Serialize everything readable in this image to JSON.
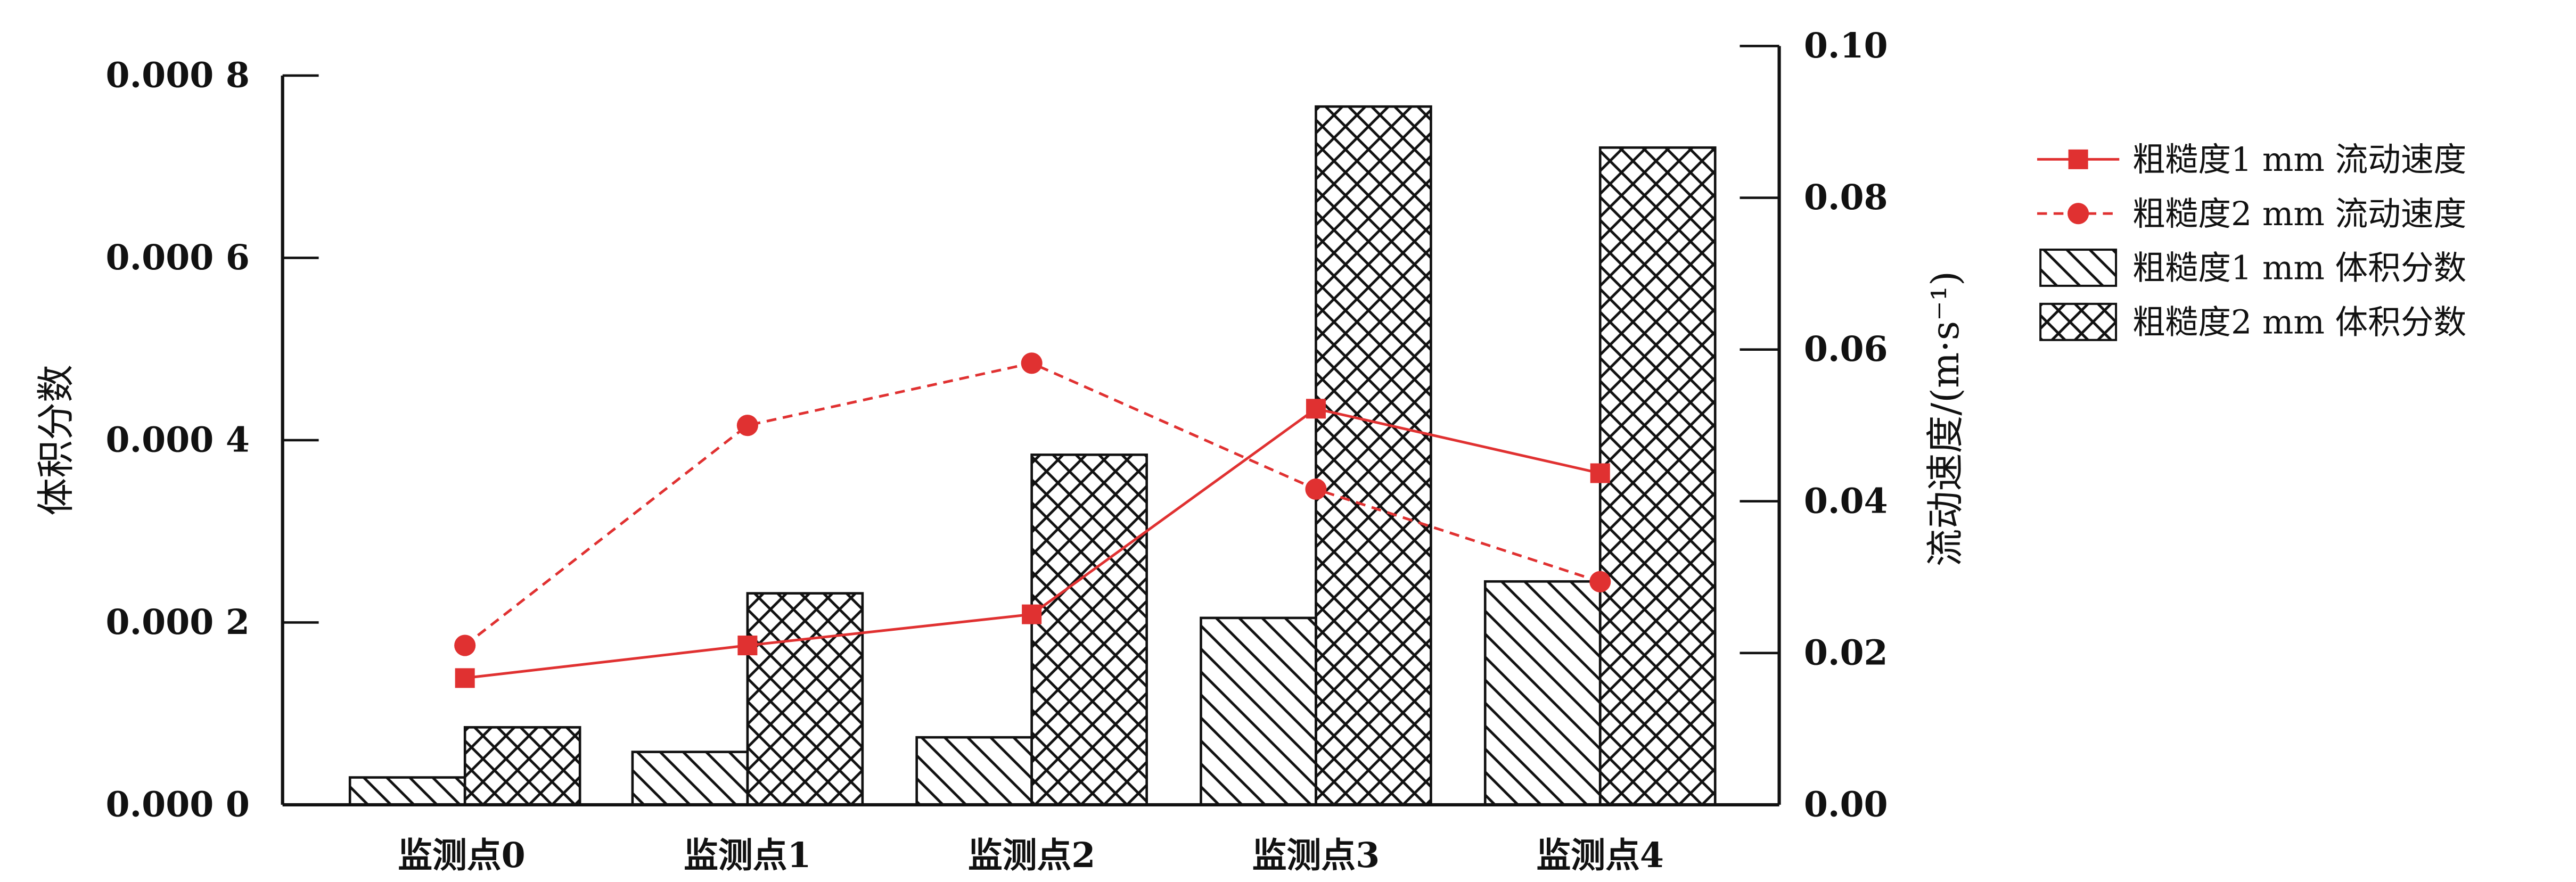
{
  "chart_data": {
    "type": "bar",
    "categories": [
      "监测点0",
      "监测点1",
      "监测点2",
      "监测点3",
      "监测点4"
    ],
    "ylabel": "体积分数",
    "y2label": "流动速度/(m·s⁻¹)",
    "ylim": [
      0,
      0.0008
    ],
    "yticks": [
      "0.000 0",
      "0.000 2",
      "0.000 4",
      "0.000 6",
      "0.000 8"
    ],
    "y2lim": [
      0,
      0.1
    ],
    "y2ticks": [
      "0.00",
      "0.02",
      "0.04",
      "0.06",
      "0.08",
      "0.10"
    ],
    "legend_position": "right",
    "bar_series": [
      {
        "name": "粗糙度1 mm 体积分数",
        "pattern": "diagonal-hatch",
        "values": [
          3e-05,
          5.8e-05,
          7.4e-05,
          0.000205,
          0.000245
        ]
      },
      {
        "name": "粗糙度2 mm 体积分数",
        "pattern": "cross-hatch",
        "values": [
          8.5e-05,
          0.000232,
          0.000384,
          0.000766,
          0.000721
        ]
      }
    ],
    "line_series": [
      {
        "name": "粗糙度1 mm 流动速度",
        "marker": "square",
        "style": "solid",
        "color": "#e03131",
        "values": [
          0.0167,
          0.021,
          0.0251,
          0.0522,
          0.0437
        ]
      },
      {
        "name": "粗糙度2 mm 流动速度",
        "marker": "circle",
        "style": "dashed",
        "color": "#e03131",
        "values": [
          0.021,
          0.05,
          0.0582,
          0.0416,
          0.0294
        ]
      }
    ]
  }
}
